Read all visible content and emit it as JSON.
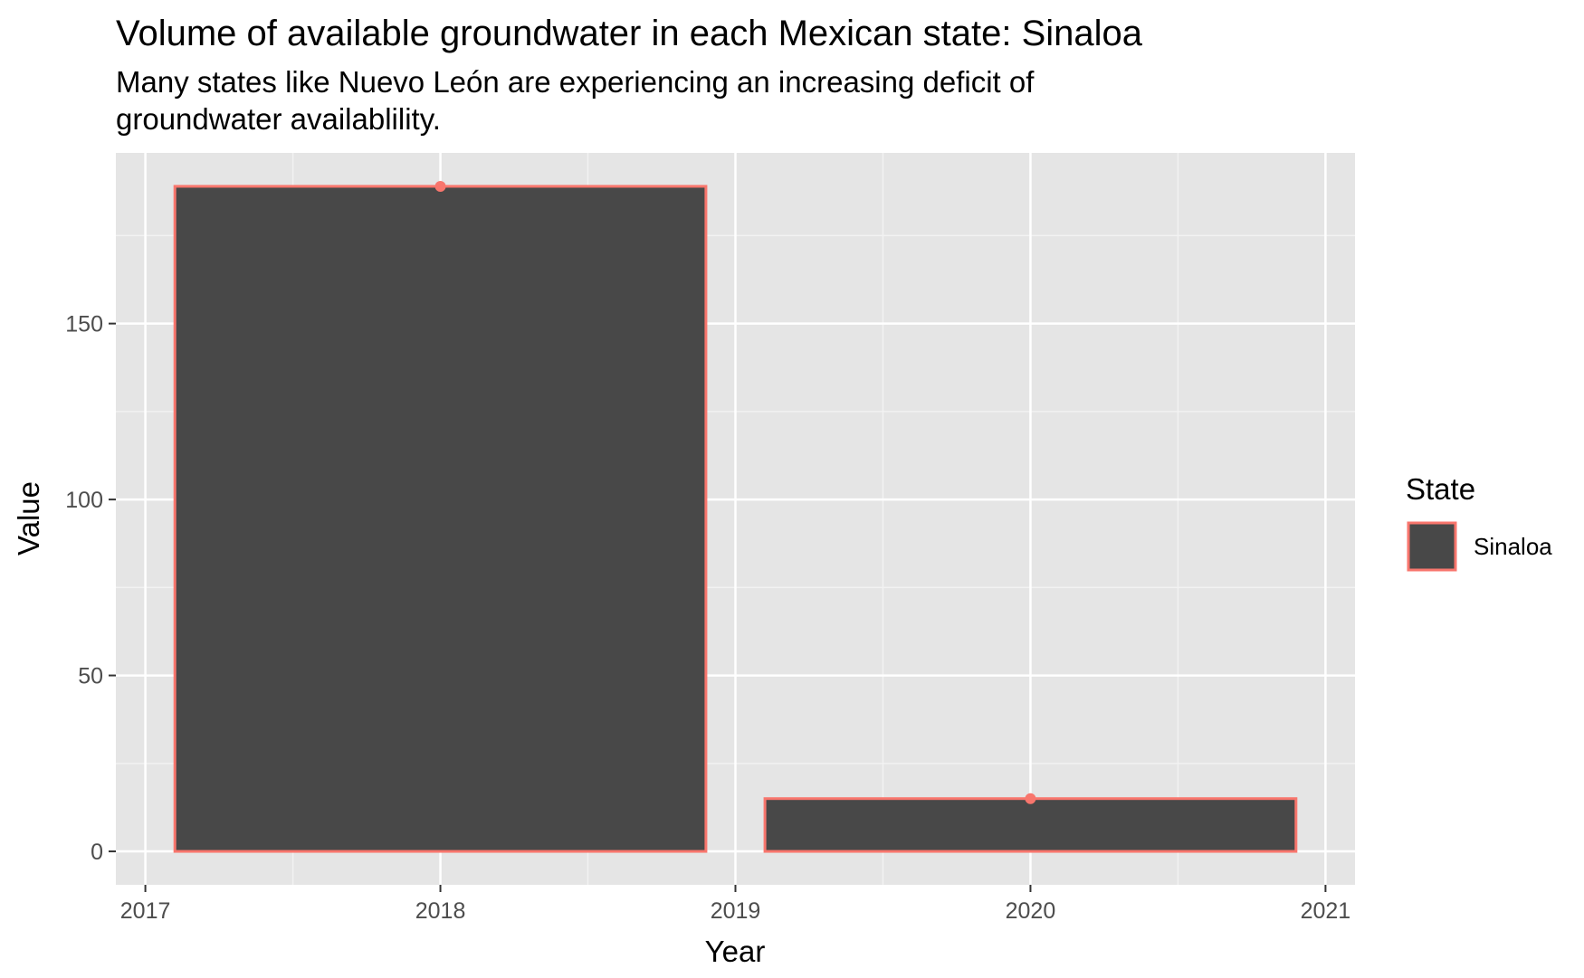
{
  "chart_data": {
    "type": "bar",
    "title": "Volume of available groundwater in each Mexican state: Sinaloa",
    "subtitle_lines": [
      "Many states like Nuevo León are experiencing an increasing deficit of",
      "groundwater availablility."
    ],
    "xlabel": "Year",
    "ylabel": "Value",
    "x": [
      2018,
      2020
    ],
    "series": [
      {
        "name": "Sinaloa",
        "values": [
          189,
          15
        ]
      }
    ],
    "x_ticks": [
      "2017",
      "2018",
      "2019",
      "2020",
      "2021"
    ],
    "y_ticks": [
      "0",
      "50",
      "100",
      "150"
    ],
    "xlim": [
      2016.9,
      2021.1
    ],
    "ylim": [
      -9.5,
      198.5
    ],
    "bar_width": 1.8,
    "grid": true,
    "legend": {
      "title": "State",
      "position": "right",
      "entries": [
        "Sinaloa"
      ]
    },
    "colors": {
      "bar_fill": "#484848",
      "bar_outline": "#F8766D",
      "panel_background": "#E5E5E5",
      "grid_line": "#FFFFFF"
    }
  }
}
